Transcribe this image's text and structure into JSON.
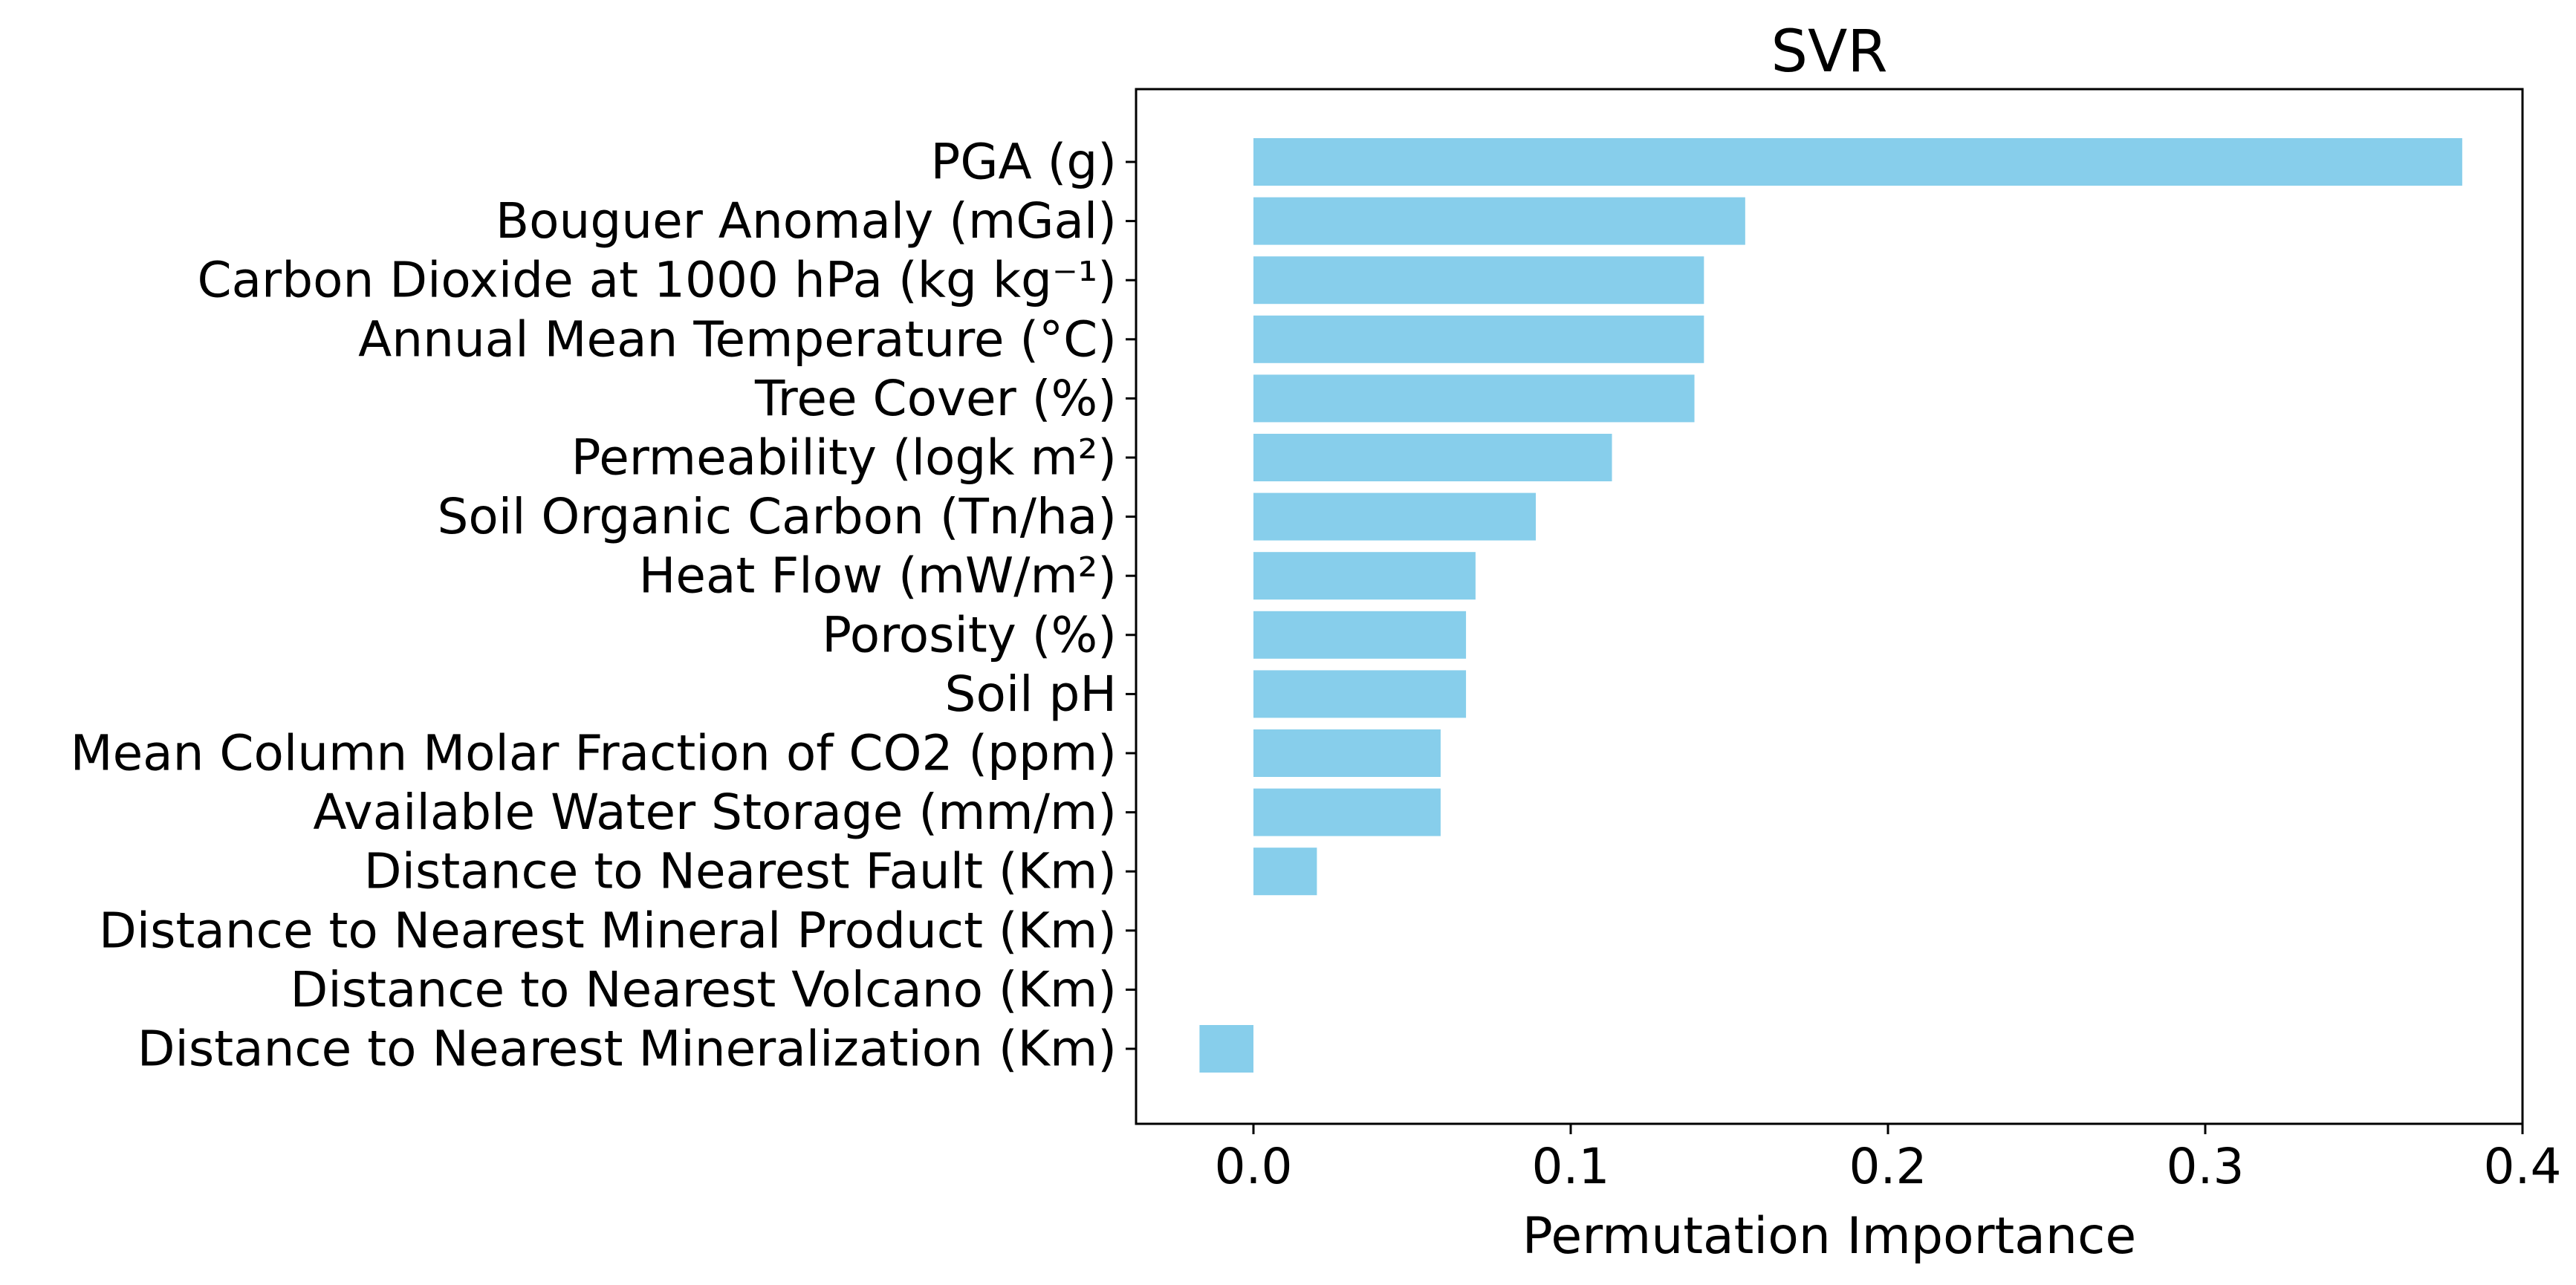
{
  "chart_data": {
    "type": "bar",
    "orientation": "horizontal",
    "title": "SVR",
    "xlabel": "Permutation Importance",
    "ylabel": "",
    "bar_color": "#87CEEB",
    "grid": false,
    "xlim": [
      -0.037,
      0.4
    ],
    "xticks": [
      0.0,
      0.1,
      0.2,
      0.3,
      0.4
    ],
    "xtick_labels": [
      "0.0",
      "0.1",
      "0.2",
      "0.3",
      "0.4"
    ],
    "categories": [
      "PGA (g)",
      "Bouguer Anomaly (mGal)",
      "Carbon Dioxide at 1000 hPa (kg kg⁻¹)",
      "Annual Mean Temperature (°C)",
      "Tree Cover (%)",
      "Permeability (logk m²)",
      "Soil Organic Carbon (Tn/ha)",
      "Heat Flow (mW/m²)",
      "Porosity (%)",
      "Soil pH",
      "Mean Column Molar Fraction of CO2 (ppm)",
      "Available Water Storage (mm/m)",
      "Distance to Nearest Fault (Km)",
      "Distance to Nearest Mineral Product (Km)",
      "Distance to Nearest Volcano (Km)",
      "Distance to Nearest Mineralization (Km)"
    ],
    "values": [
      0.381,
      0.155,
      0.142,
      0.142,
      0.139,
      0.113,
      0.089,
      0.07,
      0.067,
      0.067,
      0.059,
      0.059,
      0.02,
      0.0,
      0.0,
      -0.017
    ]
  }
}
